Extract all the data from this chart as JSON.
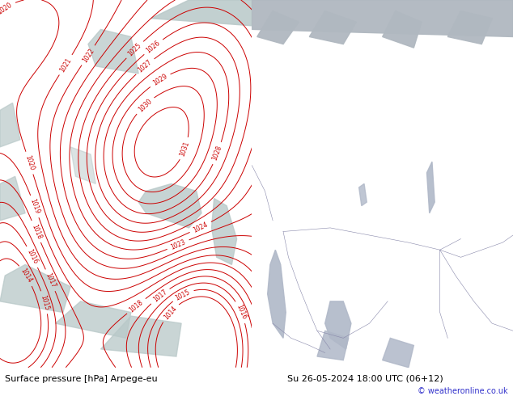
{
  "fig_width": 6.34,
  "fig_height": 4.9,
  "dpi": 100,
  "left_bg": "#c8f0c0",
  "left_water": "#b8c8c8",
  "right_bg": "#cdc9a0",
  "right_water": "#b0b8c8",
  "right_water2": "#9aaab8",
  "contour_color": "#cc0000",
  "contour_lw": 0.7,
  "label_fontsize": 5.5,
  "border_color": "#8888aa",
  "border_lw": 0.4,
  "bottom_left_text": "Surface pressure [hPa] Arpege-eu",
  "bottom_right_text": "Su 26-05-2024 18:00 UTC (06+12)",
  "copyright_text": "© weatheronline.co.uk",
  "text_color": "#000000",
  "blue_text_color": "#3333cc",
  "font_size_bottom": 8,
  "font_size_copyright": 7,
  "split": 0.491
}
